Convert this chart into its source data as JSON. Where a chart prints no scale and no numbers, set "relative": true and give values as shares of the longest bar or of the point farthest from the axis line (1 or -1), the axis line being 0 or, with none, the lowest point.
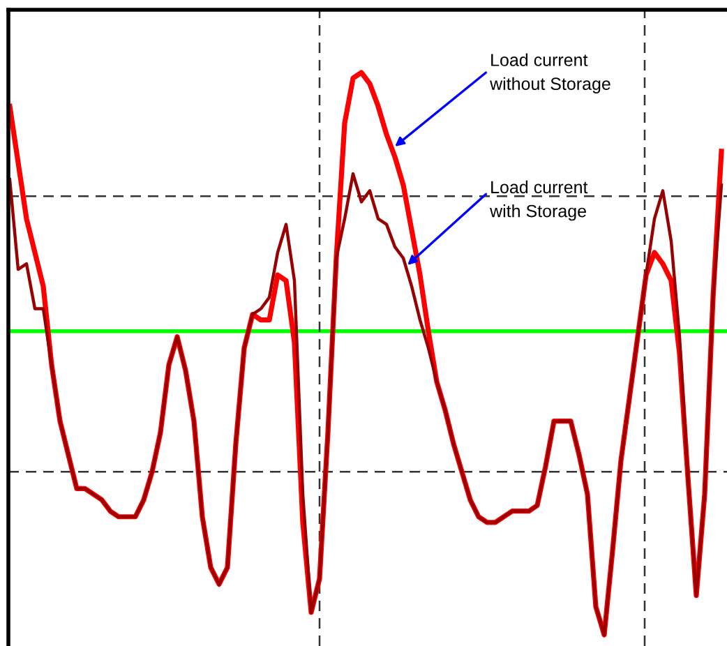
{
  "chart_data": {
    "type": "line",
    "relative": true,
    "categories": [
      null,
      null,
      null,
      null,
      null,
      null,
      null,
      null,
      null,
      null,
      null,
      null,
      null,
      null,
      null,
      null,
      null,
      null,
      null,
      null,
      null,
      null,
      null,
      null,
      null,
      null,
      null,
      null,
      null,
      null,
      null,
      null,
      null,
      null,
      null,
      null,
      null,
      null,
      null,
      null,
      null,
      null,
      null,
      null,
      null,
      null,
      null,
      null,
      null,
      null,
      null,
      null,
      null,
      null,
      null,
      null,
      null,
      null,
      null,
      null,
      null,
      null,
      null,
      null,
      null,
      null,
      null,
      null,
      null,
      null,
      null,
      null,
      null,
      null,
      null,
      null,
      null,
      null,
      null,
      null,
      null,
      null,
      null,
      null,
      null,
      null
    ],
    "series": [
      {
        "color": "#ff0000",
        "values": [
          0.94,
          0.84,
          0.74,
          0.68,
          0.62,
          0.48,
          0.38,
          0.32,
          0.26,
          0.26,
          0.25,
          0.24,
          0.22,
          0.21,
          0.21,
          0.21,
          0.24,
          0.29,
          0.36,
          0.48,
          0.53,
          0.47,
          0.38,
          0.21,
          0.12,
          0.09,
          0.12,
          0.34,
          0.51,
          0.57,
          0.56,
          0.56,
          0.64,
          0.63,
          0.52,
          0.2,
          0.04,
          0.1,
          0.36,
          0.67,
          0.91,
          0.99,
          1.0,
          0.98,
          0.94,
          0.89,
          0.85,
          0.8,
          0.72,
          0.64,
          0.54,
          0.45,
          0.4,
          0.34,
          0.29,
          0.24,
          0.21,
          0.2,
          0.2,
          0.21,
          0.22,
          0.22,
          0.22,
          0.23,
          0.3,
          0.38,
          0.38,
          0.38,
          0.32,
          0.25,
          0.05,
          0.0,
          0.15,
          0.31,
          0.42,
          0.53,
          0.64,
          0.68,
          0.66,
          0.63,
          0.5,
          0.28,
          0.07,
          0.25,
          0.6,
          0.86
        ]
      },
      {
        "color": "#990000",
        "values": [
          0.81,
          0.65,
          0.66,
          0.58,
          0.58,
          0.48,
          0.38,
          0.32,
          0.26,
          0.26,
          0.25,
          0.24,
          0.22,
          0.21,
          0.21,
          0.21,
          0.24,
          0.29,
          0.36,
          0.48,
          0.53,
          0.47,
          0.38,
          0.21,
          0.12,
          0.09,
          0.12,
          0.34,
          0.51,
          0.57,
          0.58,
          0.6,
          0.68,
          0.73,
          0.63,
          0.25,
          0.04,
          0.1,
          0.36,
          0.67,
          0.74,
          0.82,
          0.77,
          0.79,
          0.74,
          0.73,
          0.69,
          0.67,
          0.62,
          0.56,
          0.51,
          0.45,
          0.4,
          0.34,
          0.29,
          0.24,
          0.21,
          0.2,
          0.2,
          0.21,
          0.22,
          0.22,
          0.22,
          0.23,
          0.3,
          0.38,
          0.38,
          0.38,
          0.32,
          0.25,
          0.05,
          0.0,
          0.15,
          0.31,
          0.42,
          0.53,
          0.64,
          0.74,
          0.79,
          0.7,
          0.53,
          0.28,
          0.07,
          0.25,
          0.6,
          0.8
        ]
      }
    ],
    "ref_lines": [
      {
        "axis": "y",
        "value": 0.54,
        "color": "#00ff00",
        "line_style": "solid"
      },
      {
        "axis": "y",
        "value": 0.78,
        "color": "#333333",
        "line_style": "dashed"
      },
      {
        "axis": "y",
        "value": 0.29,
        "color": "#333333",
        "line_style": "dashed"
      }
    ],
    "annotations": [
      "Load current\nwithout Storage",
      "Load current\nwith Storage"
    ],
    "legend": false,
    "marker": "none",
    "line_style": "solid"
  }
}
